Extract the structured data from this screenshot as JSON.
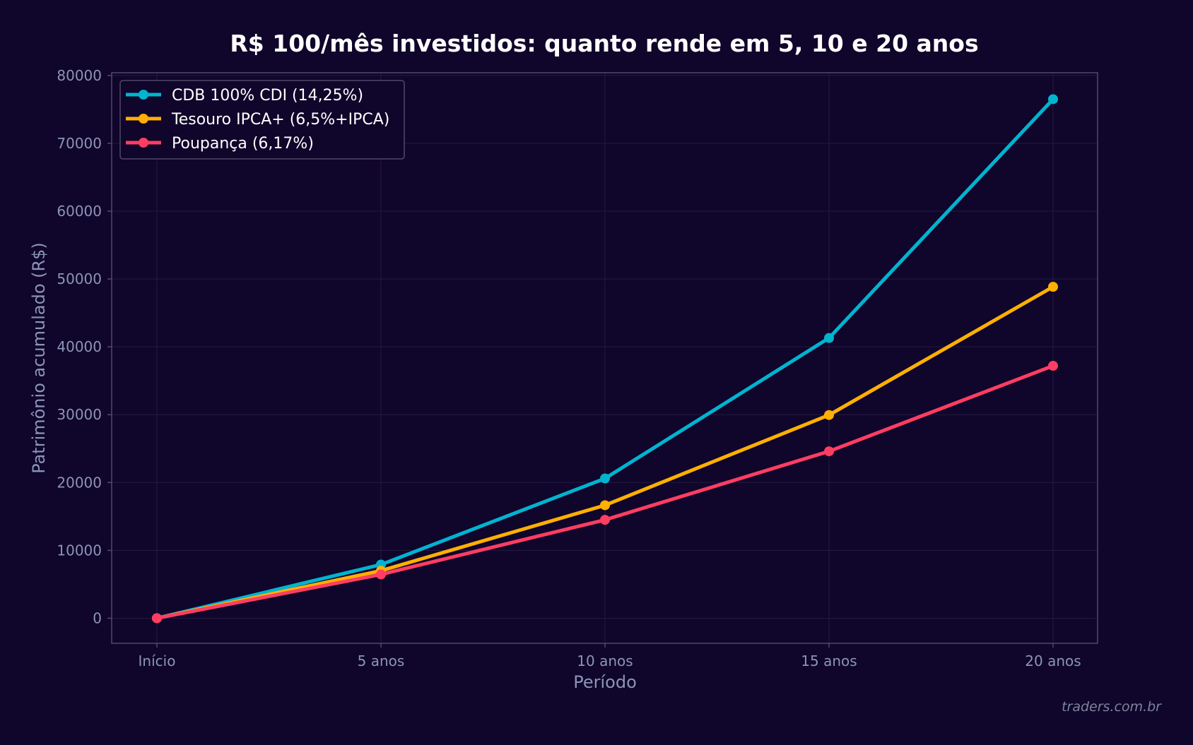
{
  "chart_data": {
    "type": "line",
    "title": "R$ 100/mês investidos: quanto rende em 5, 10 e 20 anos",
    "xlabel": "Período",
    "ylabel": "Patrimônio acumulado (R$)",
    "categories": [
      "Início",
      "5 anos",
      "10 anos",
      "15 anos",
      "20 anos"
    ],
    "ylim": [
      -3700,
      80400
    ],
    "yticks": [
      0,
      10000,
      20000,
      30000,
      40000,
      50000,
      60000,
      70000,
      80000
    ],
    "grid": true,
    "legend_position": "top-left",
    "series": [
      {
        "name": "CDB 100% CDI (14,25%)",
        "color": "#00b4d0",
        "values": [
          0,
          7900,
          20600,
          41300,
          76500
        ]
      },
      {
        "name": "Tesouro IPCA+ (6,5%+IPCA)",
        "color": "#ffb000",
        "values": [
          0,
          7000,
          16650,
          29950,
          48850
        ]
      },
      {
        "name": "Poupança (6,17%)",
        "color": "#ff3d63",
        "values": [
          0,
          6450,
          14500,
          24600,
          37200
        ]
      }
    ]
  },
  "watermark": "traders.com.br",
  "colors": {
    "background": "#10052a",
    "axis_text": "#8b95b5",
    "frame": "#4f4a68",
    "grid": "#241a40"
  }
}
